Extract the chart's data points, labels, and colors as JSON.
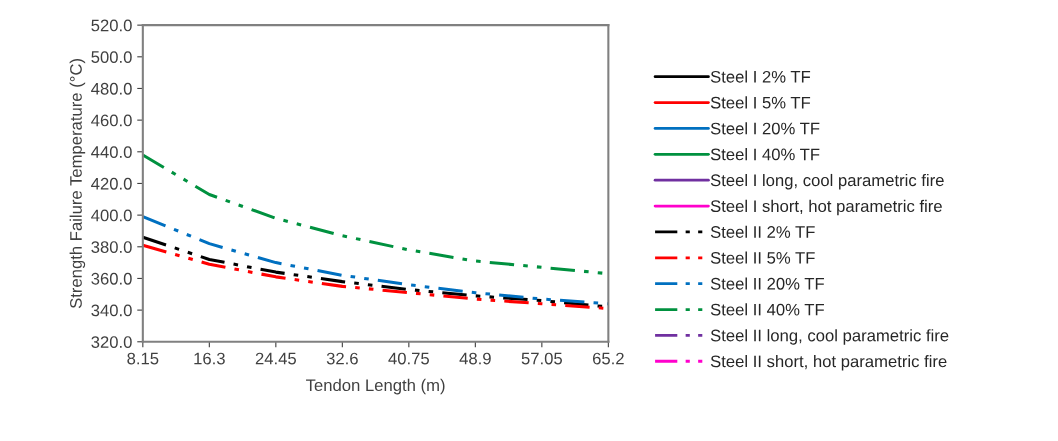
{
  "chart_data": {
    "type": "line",
    "xlabel": "Tendon Length (m)",
    "ylabel": "Strength Failure Temperature (°C)",
    "x": [
      8.15,
      16.3,
      24.45,
      32.6,
      40.75,
      48.9,
      57.05,
      65.2
    ],
    "series": [
      {
        "name": "Steel I 2% TF",
        "color": "#000000",
        "line_style": "solid",
        "values": [
          null,
          null,
          null,
          null,
          null,
          null,
          null,
          null
        ]
      },
      {
        "name": "Steel I 5% TF",
        "color": "#ff0000",
        "line_style": "solid",
        "values": [
          null,
          null,
          null,
          null,
          null,
          null,
          null,
          null
        ]
      },
      {
        "name": "Steel I 20% TF",
        "color": "#0070c0",
        "line_style": "solid",
        "values": [
          null,
          null,
          null,
          null,
          null,
          null,
          null,
          null
        ]
      },
      {
        "name": "Steel I 40% TF",
        "color": "#00913f",
        "line_style": "solid",
        "values": [
          null,
          null,
          null,
          null,
          null,
          null,
          null,
          null
        ]
      },
      {
        "name": "Steel I long, cool parametric fire",
        "color": "#7030a0",
        "line_style": "solid",
        "values": [
          null,
          null,
          null,
          null,
          null,
          null,
          null,
          null
        ]
      },
      {
        "name": "Steel I short, hot parametric fire",
        "color": "#ff00cc",
        "line_style": "solid",
        "values": [
          null,
          null,
          null,
          null,
          null,
          null,
          null,
          null
        ]
      },
      {
        "name": "Steel II 2% TF",
        "color": "#000000",
        "line_style": "dashed",
        "values": [
          386,
          372,
          364,
          358,
          353,
          349,
          346,
          342
        ]
      },
      {
        "name": "Steel II 5% TF",
        "color": "#ff0000",
        "line_style": "dashed",
        "values": [
          381,
          369,
          361,
          355,
          351,
          347,
          344,
          341
        ]
      },
      {
        "name": "Steel II 20% TF",
        "color": "#0070c0",
        "line_style": "dashed",
        "values": [
          399,
          382,
          370,
          362,
          356,
          351,
          347,
          344
        ]
      },
      {
        "name": "Steel II 40% TF",
        "color": "#00913f",
        "line_style": "dashed",
        "values": [
          438,
          413,
          398,
          387,
          378,
          371,
          367,
          363
        ]
      },
      {
        "name": "Steel II long, cool parametric fire",
        "color": "#7030a0",
        "line_style": "dashed",
        "values": [
          null,
          null,
          null,
          null,
          null,
          null,
          null,
          null
        ]
      },
      {
        "name": "Steel II short, hot parametric fire",
        "color": "#ff00cc",
        "line_style": "dashed",
        "values": [
          null,
          null,
          null,
          null,
          null,
          null,
          null,
          null
        ]
      }
    ],
    "xlim": [
      8.15,
      65.2
    ],
    "xticks": [
      8.15,
      16.3,
      24.45,
      32.6,
      40.75,
      48.9,
      57.05,
      65.2
    ],
    "ylim": [
      320,
      520
    ],
    "yticks": [
      {
        "value": 320,
        "label": "320.0"
      },
      {
        "value": 340,
        "label": "340.0"
      },
      {
        "value": 360,
        "label": "360.0"
      },
      {
        "value": 380,
        "label": "380.0"
      },
      {
        "value": 400,
        "label": "400.0"
      },
      {
        "value": 420,
        "label": "420.0"
      },
      {
        "value": 440,
        "label": "440.0"
      },
      {
        "value": 460,
        "label": "460.0"
      },
      {
        "value": 480,
        "label": "480.0"
      },
      {
        "value": 500,
        "label": "500.0"
      },
      {
        "value": 520,
        "label": "520.0"
      }
    ],
    "grid": false,
    "legend": "right"
  }
}
